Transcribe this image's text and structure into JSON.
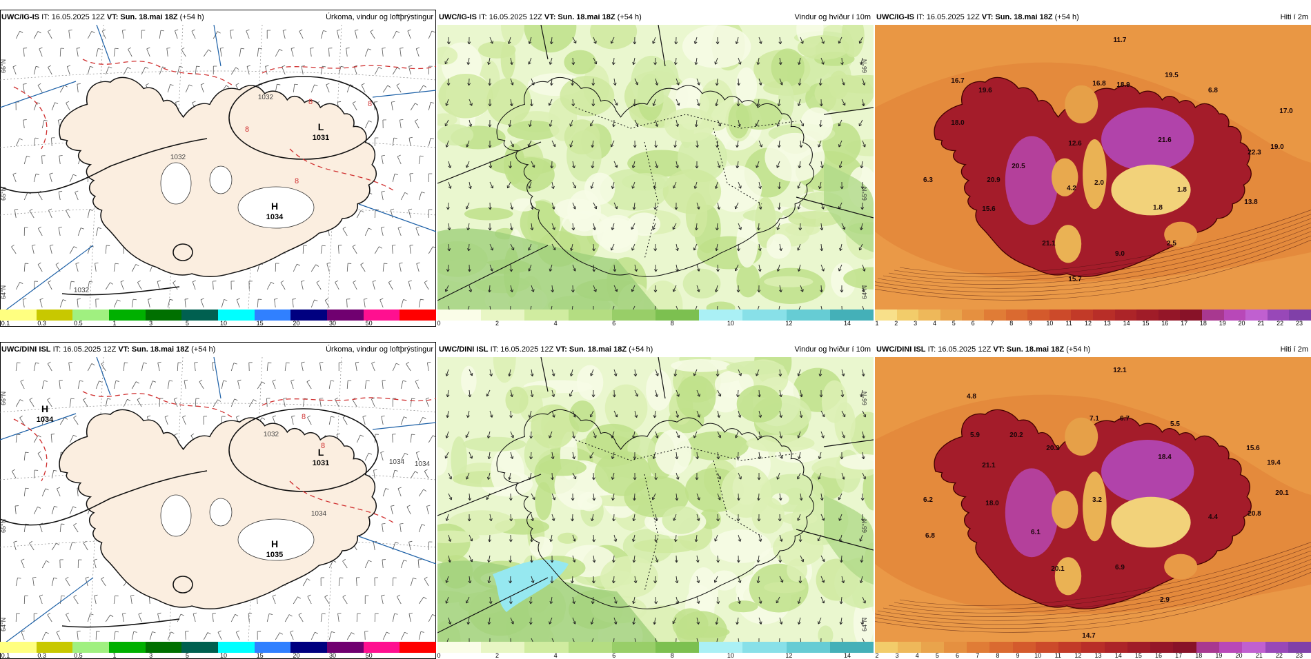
{
  "panels": [
    {
      "model": "UWC/IG-IS",
      "it": "IT: 16.05.2025 12Z",
      "vt_label": "VT:",
      "vt": "Sun. 18.mai 18Z",
      "lead": "(+54 h)",
      "product": "Úrkoma, vindur og loftþrýstingur",
      "type": "precip",
      "labels": [
        {
          "kind": "pressure",
          "letter": "L",
          "value": "1031"
        },
        {
          "kind": "pressure",
          "letter": "H",
          "value": "1034"
        },
        {
          "kind": "isobar",
          "value": "1032"
        },
        {
          "kind": "isobar",
          "value": "1032"
        },
        {
          "kind": "temp",
          "value": "8"
        },
        {
          "kind": "temp",
          "value": "8"
        },
        {
          "kind": "temp",
          "value": "8"
        },
        {
          "kind": "temp",
          "value": "8"
        },
        {
          "kind": "isobar",
          "value": "1032"
        }
      ],
      "lat_labels": [
        "66°N",
        "65°N",
        "64°N"
      ],
      "scale": {
        "colors": [
          "#ffff80",
          "#c8c800",
          "#a0f080",
          "#00b000",
          "#007000",
          "#006050",
          "#00ffff",
          "#3080ff",
          "#000080",
          "#700070",
          "#ff1090",
          "#ff0000"
        ],
        "ticks": [
          "0.1",
          "0.3",
          "0.5",
          "1",
          "3",
          "5",
          "10",
          "15",
          "20",
          "30",
          "50"
        ]
      }
    },
    {
      "model": "UWC/IG-IS",
      "it": "IT: 16.05.2025 12Z",
      "vt_label": "VT:",
      "vt": "Sun. 18.mai 18Z",
      "lead": "(+54 h)",
      "product": "Vindur og hviður í 10m",
      "type": "wind",
      "labels": [],
      "lat_labels": [
        "66°N",
        "65°N",
        "64°N"
      ],
      "scale": {
        "colors": [
          "#fafde8",
          "#e8f6c4",
          "#d0eca0",
          "#b4dd82",
          "#98ce68",
          "#7cc050",
          "#aaf0f5",
          "#88e0e8",
          "#66ccd4",
          "#44b0b8"
        ],
        "ticks": [
          "0",
          "2",
          "4",
          "6",
          "8",
          "10",
          "12",
          "14"
        ]
      }
    },
    {
      "model": "UWC/IG-IS",
      "it": "IT: 16.05.2025 12Z",
      "vt_label": "VT:",
      "vt": "Sun. 18.mai 18Z",
      "lead": "(+54 h)",
      "product": "Hiti í 2m",
      "type": "temp",
      "labels": [
        {
          "kind": "t",
          "value": "11.7"
        },
        {
          "kind": "t",
          "value": "16.7"
        },
        {
          "kind": "t",
          "value": "19.6"
        },
        {
          "kind": "t",
          "value": "16.8"
        },
        {
          "kind": "t",
          "value": "18.9"
        },
        {
          "kind": "t",
          "value": "19.5"
        },
        {
          "kind": "t",
          "value": "6.8"
        },
        {
          "kind": "t",
          "value": "18.0"
        },
        {
          "kind": "t",
          "value": "17.0"
        },
        {
          "kind": "t",
          "value": "21.6"
        },
        {
          "kind": "t",
          "value": "12.6"
        },
        {
          "kind": "t",
          "value": "20.5"
        },
        {
          "kind": "t",
          "value": "22.3"
        },
        {
          "kind": "t",
          "value": "19.0"
        },
        {
          "kind": "t",
          "value": "6.3"
        },
        {
          "kind": "t",
          "value": "20.9"
        },
        {
          "kind": "t",
          "value": "4.2"
        },
        {
          "kind": "t",
          "value": "2.0"
        },
        {
          "kind": "t",
          "value": "1.8"
        },
        {
          "kind": "t",
          "value": "15.6"
        },
        {
          "kind": "t",
          "value": "1.8"
        },
        {
          "kind": "t",
          "value": "13.8"
        },
        {
          "kind": "t",
          "value": "21.1"
        },
        {
          "kind": "t",
          "value": "9.0"
        },
        {
          "kind": "t",
          "value": "2.5"
        },
        {
          "kind": "t",
          "value": "15.7"
        }
      ],
      "lat_labels": [],
      "scale": {
        "colors": [
          "#f8e08a",
          "#f2cc6a",
          "#eeb85a",
          "#e9a44c",
          "#e59040",
          "#e07c36",
          "#da6a30",
          "#d45a2c",
          "#cc4a2a",
          "#c23a28",
          "#b82e28",
          "#ac2428",
          "#a01c28",
          "#941628",
          "#881228",
          "#a83890",
          "#b848b8",
          "#c060d0",
          "#9848b8",
          "#8040a8"
        ],
        "ticks": [
          "1",
          "2",
          "3",
          "4",
          "5",
          "6",
          "7",
          "8",
          "9",
          "10",
          "11",
          "12",
          "13",
          "14",
          "15",
          "16",
          "17",
          "18",
          "19",
          "20",
          "21",
          "22",
          "23"
        ]
      }
    },
    {
      "model": "UWC/DINI ISL",
      "it": "IT: 16.05.2025 12Z",
      "vt_label": "VT:",
      "vt": "Sun. 18.mai 18Z",
      "lead": "(+54 h)",
      "product": "Úrkoma, vindur og loftþrýstingur",
      "type": "precip",
      "labels": [
        {
          "kind": "pressure",
          "letter": "H",
          "value": "1034"
        },
        {
          "kind": "pressure",
          "letter": "L",
          "value": "1031"
        },
        {
          "kind": "pressure",
          "letter": "H",
          "value": "1035"
        },
        {
          "kind": "isobar",
          "value": "1032"
        },
        {
          "kind": "isobar",
          "value": "1034"
        },
        {
          "kind": "isobar",
          "value": "1034"
        },
        {
          "kind": "isobar",
          "value": "1034"
        },
        {
          "kind": "temp",
          "value": "8"
        },
        {
          "kind": "temp",
          "value": "8"
        }
      ],
      "lat_labels": [
        "66°N",
        "65°N",
        "64°N"
      ],
      "scale": {
        "colors": [
          "#ffff80",
          "#c8c800",
          "#a0f080",
          "#00b000",
          "#007000",
          "#006050",
          "#00ffff",
          "#3080ff",
          "#000080",
          "#700070",
          "#ff1090",
          "#ff0000"
        ],
        "ticks": [
          "0.1",
          "0.3",
          "0.5",
          "1",
          "3",
          "5",
          "10",
          "15",
          "20",
          "30",
          "50"
        ]
      }
    },
    {
      "model": "UWC/DINI ISL",
      "it": "IT: 16.05.2025 12Z",
      "vt_label": "VT:",
      "vt": "Sun. 18.mai 18Z",
      "lead": "(+54 h)",
      "product": "Vindur og hviður í 10m",
      "type": "wind",
      "labels": [],
      "lat_labels": [
        "66°N",
        "65°N",
        "64°N"
      ],
      "scale": {
        "colors": [
          "#fafde8",
          "#e8f6c4",
          "#d0eca0",
          "#b4dd82",
          "#98ce68",
          "#7cc050",
          "#aaf0f5",
          "#88e0e8",
          "#66ccd4",
          "#44b0b8"
        ],
        "ticks": [
          "0",
          "2",
          "4",
          "6",
          "8",
          "10",
          "12",
          "14"
        ]
      }
    },
    {
      "model": "UWC/DINI ISL",
      "it": "IT: 16.05.2025 12Z",
      "vt_label": "VT:",
      "vt": "Sun. 18.mai 18Z",
      "lead": "(+54 h)",
      "product": "Hiti í 2m",
      "type": "temp",
      "labels": [
        {
          "kind": "t",
          "value": "12.1"
        },
        {
          "kind": "t",
          "value": "4.8"
        },
        {
          "kind": "t",
          "value": "7.1"
        },
        {
          "kind": "t",
          "value": "6.7"
        },
        {
          "kind": "t",
          "value": "5.5"
        },
        {
          "kind": "t",
          "value": "5.9"
        },
        {
          "kind": "t",
          "value": "20.2"
        },
        {
          "kind": "t",
          "value": "20.3"
        },
        {
          "kind": "t",
          "value": "21.1"
        },
        {
          "kind": "t",
          "value": "18.4"
        },
        {
          "kind": "t",
          "value": "15.6"
        },
        {
          "kind": "t",
          "value": "19.4"
        },
        {
          "kind": "t",
          "value": "20.1"
        },
        {
          "kind": "t",
          "value": "6.2"
        },
        {
          "kind": "t",
          "value": "18.0"
        },
        {
          "kind": "t",
          "value": "3.2"
        },
        {
          "kind": "t",
          "value": "20.8"
        },
        {
          "kind": "t",
          "value": "4.4"
        },
        {
          "kind": "t",
          "value": "6.8"
        },
        {
          "kind": "t",
          "value": "6.1"
        },
        {
          "kind": "t",
          "value": "20.1"
        },
        {
          "kind": "t",
          "value": "6.9"
        },
        {
          "kind": "t",
          "value": "2.9"
        },
        {
          "kind": "t",
          "value": "14.7"
        }
      ],
      "lat_labels": [],
      "scale": {
        "colors": [
          "#f2cc6a",
          "#eeb85a",
          "#e9a44c",
          "#e59040",
          "#e07c36",
          "#da6a30",
          "#d45a2c",
          "#cc4a2a",
          "#c23a28",
          "#b82e28",
          "#ac2428",
          "#a01c28",
          "#941628",
          "#881228",
          "#a83890",
          "#b848b8",
          "#c060d0",
          "#9848b8",
          "#8040a8"
        ],
        "ticks": [
          "2",
          "3",
          "4",
          "5",
          "6",
          "7",
          "8",
          "9",
          "10",
          "11",
          "12",
          "13",
          "14",
          "15",
          "16",
          "17",
          "18",
          "19",
          "20",
          "21",
          "22",
          "23"
        ]
      }
    }
  ]
}
